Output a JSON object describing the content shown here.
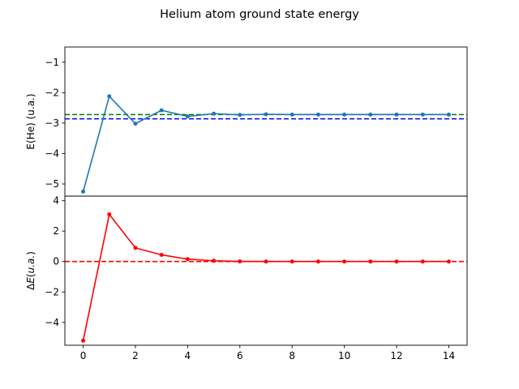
{
  "chart_data": {
    "title": "Helium atom ground state energy",
    "type": "line",
    "panels": [
      {
        "id": "top",
        "ylabel": "E(He) (u.a.)",
        "xlim": [
          -0.7,
          14.7
        ],
        "ylim": [
          -5.4,
          -0.5
        ],
        "yticks": [
          -5,
          -4,
          -3,
          -2,
          -1
        ],
        "xticks": [],
        "series": [
          {
            "type": "line",
            "color": "#1f77b4",
            "marker": true,
            "x": [
              0,
              1,
              2,
              3,
              4,
              5,
              6,
              7,
              8,
              9,
              10,
              11,
              12,
              13,
              14
            ],
            "y": [
              -5.25,
              -2.12,
              -3.02,
              -2.58,
              -2.78,
              -2.69,
              -2.73,
              -2.71,
              -2.72,
              -2.72,
              -2.72,
              -2.72,
              -2.72,
              -2.72,
              -2.72
            ]
          }
        ],
        "reference_lines": [
          {
            "y": -2.72,
            "color": "#008000",
            "style": "dashed"
          },
          {
            "y": -2.86,
            "color": "#0000ff",
            "style": "dashed"
          }
        ]
      },
      {
        "id": "bottom",
        "ylabel": "ΔE(u.a.)",
        "xlim": [
          -0.7,
          14.7
        ],
        "ylim": [
          -5.5,
          4.3
        ],
        "yticks": [
          -4,
          -2,
          0,
          2,
          4
        ],
        "xticks": [
          0,
          2,
          4,
          6,
          8,
          10,
          12,
          14
        ],
        "series": [
          {
            "type": "line",
            "color": "#ff0000",
            "marker": true,
            "x": [
              0,
              1,
              2,
              3,
              4,
              5,
              6,
              7,
              8,
              9,
              10,
              11,
              12,
              13,
              14
            ],
            "y": [
              -5.2,
              3.1,
              0.9,
              0.44,
              0.16,
              0.05,
              0.01,
              0.0,
              0.0,
              0.0,
              0.0,
              0.0,
              0.0,
              0.0,
              0.0
            ]
          }
        ],
        "reference_lines": [
          {
            "y": 0,
            "color": "#ff0000",
            "style": "dashed"
          }
        ]
      }
    ]
  }
}
